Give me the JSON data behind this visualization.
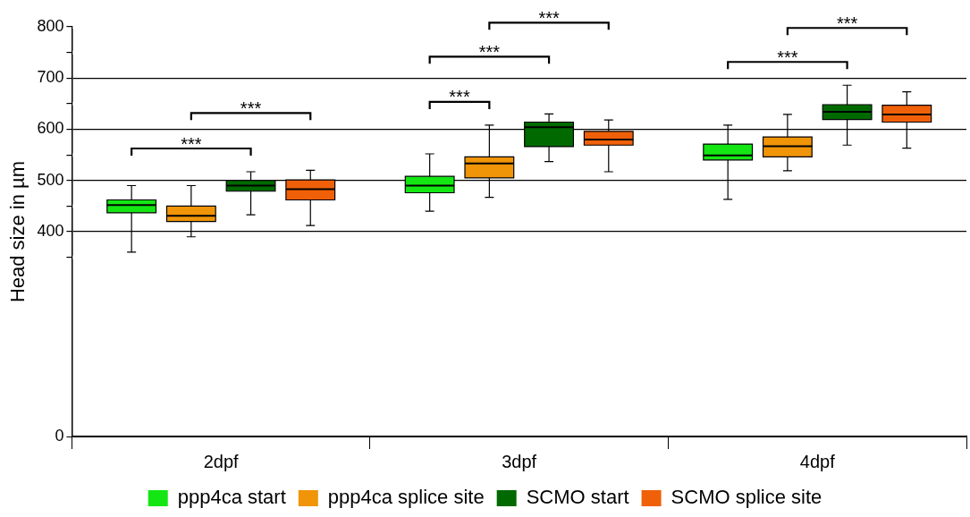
{
  "chart_data": {
    "type": "box",
    "ylabel": "Head size in µm",
    "categories": [
      "2dpf",
      "3dpf",
      "4dpf"
    ],
    "ylim": [
      0,
      800
    ],
    "yticks": [
      0,
      {
        "value": 350,
        "label": null
      },
      400,
      {
        "value": 450,
        "label": null
      },
      500,
      {
        "value": 550,
        "label": null
      },
      600,
      {
        "value": 650,
        "label": null
      },
      700,
      {
        "value": 750,
        "label": null
      },
      800
    ],
    "grid": "y",
    "legend": "bottom",
    "series": [
      {
        "name": "ppp4ca start",
        "color": "#14e614",
        "boxes": [
          {
            "low": 360,
            "q1": 437,
            "median": 452,
            "q3": 462,
            "high": 490
          },
          {
            "low": 440,
            "q1": 476,
            "median": 490,
            "q3": 508,
            "high": 552
          },
          {
            "low": 463,
            "q1": 540,
            "median": 549,
            "q3": 571,
            "high": 608
          }
        ]
      },
      {
        "name": "ppp4ca splice site",
        "color": "#f09408",
        "boxes": [
          {
            "low": 390,
            "q1": 420,
            "median": 431,
            "q3": 450,
            "high": 490
          },
          {
            "low": 467,
            "q1": 505,
            "median": 533,
            "q3": 546,
            "high": 608
          },
          {
            "low": 519,
            "q1": 546,
            "median": 567,
            "q3": 585,
            "high": 629
          }
        ]
      },
      {
        "name": "SCMO start",
        "color": "#006a00",
        "boxes": [
          {
            "low": 433,
            "q1": 479,
            "median": 490,
            "q3": 500,
            "high": 517
          },
          {
            "low": 537,
            "q1": 566,
            "median": 604,
            "q3": 614,
            "high": 630
          },
          {
            "low": 569,
            "q1": 619,
            "median": 634,
            "q3": 648,
            "high": 686
          }
        ]
      },
      {
        "name": "SCMO splice site",
        "color": "#f06008",
        "boxes": [
          {
            "low": 412,
            "q1": 462,
            "median": 483,
            "q3": 501,
            "high": 520
          },
          {
            "low": 517,
            "q1": 569,
            "median": 580,
            "q3": 596,
            "high": 618
          },
          {
            "low": 563,
            "q1": 614,
            "median": 629,
            "q3": 647,
            "high": 673
          }
        ]
      }
    ],
    "annotations": [
      "***",
      "***",
      "***",
      "***",
      "***",
      "***",
      "***"
    ]
  }
}
